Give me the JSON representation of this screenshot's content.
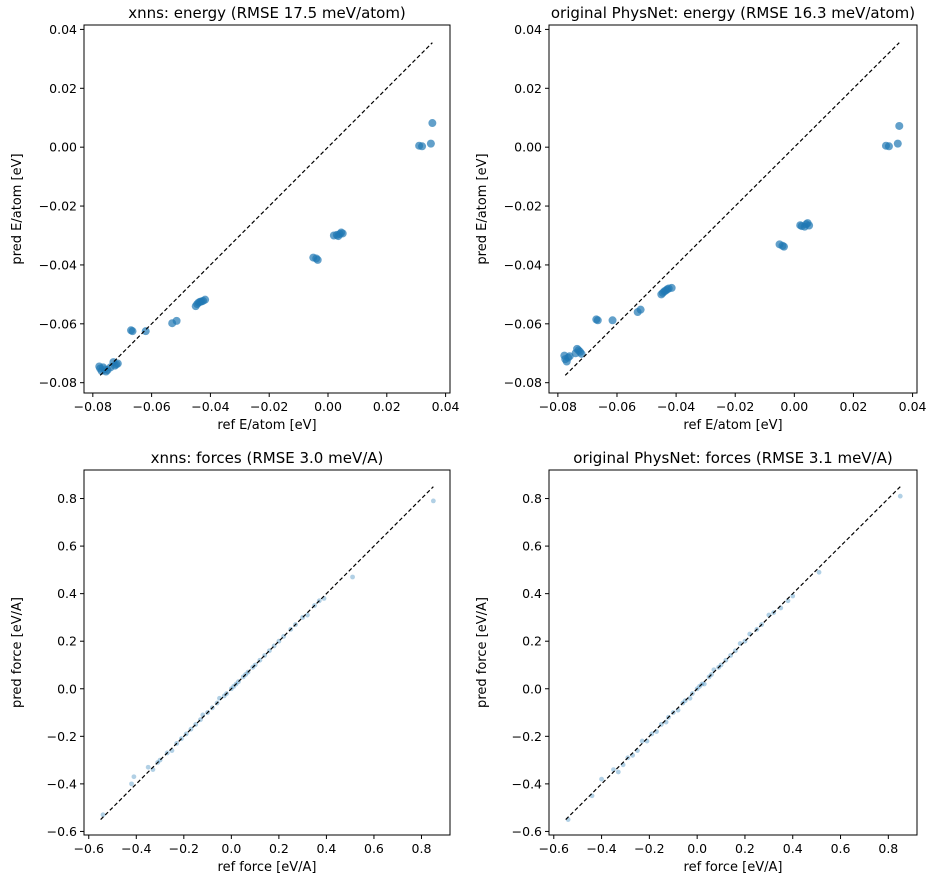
{
  "chart_data": [
    {
      "type": "scatter",
      "title": "xnns: energy (RMSE 17.5 meV/atom)",
      "xlabel": "ref E/atom [eV]",
      "ylabel": "pred E/atom [eV]",
      "xlim": [
        -0.083,
        0.0415
      ],
      "ylim": [
        -0.0835,
        0.0415
      ],
      "xticks": [
        -0.08,
        -0.06,
        -0.04,
        -0.02,
        0.0,
        0.02,
        0.04
      ],
      "xtick_labels": [
        "−0.08",
        "−0.06",
        "−0.04",
        "−0.02",
        "0.00",
        "0.02",
        "0.04"
      ],
      "yticks": [
        -0.08,
        -0.06,
        -0.04,
        -0.02,
        0.0,
        0.02,
        0.04
      ],
      "ytick_labels": [
        "−0.08",
        "−0.06",
        "−0.04",
        "−0.02",
        "0.00",
        "0.02",
        "0.04"
      ],
      "reference_line": {
        "x": [
          -0.0775,
          0.0355
        ],
        "y": [
          -0.0775,
          0.0355
        ],
        "style": "dashed",
        "color": "#000000"
      },
      "marker_color": "#1f77b4",
      "marker_alpha": 0.7,
      "grid": false,
      "points": [
        [
          -0.0778,
          -0.0745
        ],
        [
          -0.0775,
          -0.0752
        ],
        [
          -0.077,
          -0.076
        ],
        [
          -0.0765,
          -0.0748
        ],
        [
          -0.076,
          -0.0755
        ],
        [
          -0.0755,
          -0.0762
        ],
        [
          -0.075,
          -0.0757
        ],
        [
          -0.074,
          -0.0748
        ],
        [
          -0.073,
          -0.073
        ],
        [
          -0.0725,
          -0.0742
        ],
        [
          -0.072,
          -0.0738
        ],
        [
          -0.0715,
          -0.0735
        ],
        [
          -0.067,
          -0.0622
        ],
        [
          -0.0665,
          -0.0625
        ],
        [
          -0.062,
          -0.0625
        ],
        [
          -0.053,
          -0.0598
        ],
        [
          -0.0515,
          -0.059
        ],
        [
          -0.045,
          -0.054
        ],
        [
          -0.0445,
          -0.0533
        ],
        [
          -0.044,
          -0.0528
        ],
        [
          -0.0435,
          -0.0525
        ],
        [
          -0.043,
          -0.0524
        ],
        [
          -0.0425,
          -0.0522
        ],
        [
          -0.0418,
          -0.0518
        ],
        [
          -0.005,
          -0.0375
        ],
        [
          -0.004,
          -0.0378
        ],
        [
          -0.0035,
          -0.0383
        ],
        [
          0.002,
          -0.03
        ],
        [
          0.003,
          -0.0298
        ],
        [
          0.0035,
          -0.0302
        ],
        [
          0.004,
          -0.0295
        ],
        [
          0.0045,
          -0.029
        ],
        [
          0.005,
          -0.0293
        ],
        [
          0.031,
          0.0005
        ],
        [
          0.032,
          0.0003
        ],
        [
          0.035,
          0.0012
        ],
        [
          0.0355,
          0.0082
        ]
      ]
    },
    {
      "type": "scatter",
      "title": "original PhysNet: energy (RMSE 16.3 meV/atom)",
      "xlabel": "ref E/atom [eV]",
      "ylabel": "pred E/atom [eV]",
      "xlim": [
        -0.083,
        0.0415
      ],
      "ylim": [
        -0.0835,
        0.0415
      ],
      "xticks": [
        -0.08,
        -0.06,
        -0.04,
        -0.02,
        0.0,
        0.02,
        0.04
      ],
      "xtick_labels": [
        "−0.08",
        "−0.06",
        "−0.04",
        "−0.02",
        "0.00",
        "0.02",
        "0.04"
      ],
      "yticks": [
        -0.08,
        -0.06,
        -0.04,
        -0.02,
        0.0,
        0.02,
        0.04
      ],
      "ytick_labels": [
        "−0.08",
        "−0.06",
        "−0.04",
        "−0.02",
        "0.00",
        "0.02",
        "0.04"
      ],
      "reference_line": {
        "x": [
          -0.0775,
          0.0355
        ],
        "y": [
          -0.0775,
          0.0355
        ],
        "style": "dashed",
        "color": "#000000"
      },
      "marker_color": "#1f77b4",
      "marker_alpha": 0.7,
      "grid": false,
      "points": [
        [
          -0.0778,
          -0.0708
        ],
        [
          -0.0775,
          -0.072
        ],
        [
          -0.077,
          -0.0728
        ],
        [
          -0.0765,
          -0.0715
        ],
        [
          -0.076,
          -0.071
        ],
        [
          -0.074,
          -0.07
        ],
        [
          -0.0735,
          -0.0685
        ],
        [
          -0.073,
          -0.069
        ],
        [
          -0.0725,
          -0.0695
        ],
        [
          -0.072,
          -0.0702
        ],
        [
          -0.067,
          -0.0585
        ],
        [
          -0.0665,
          -0.0588
        ],
        [
          -0.0615,
          -0.0588
        ],
        [
          -0.053,
          -0.056
        ],
        [
          -0.052,
          -0.0552
        ],
        [
          -0.045,
          -0.05
        ],
        [
          -0.0445,
          -0.0495
        ],
        [
          -0.044,
          -0.049
        ],
        [
          -0.0435,
          -0.0487
        ],
        [
          -0.043,
          -0.0483
        ],
        [
          -0.0425,
          -0.048
        ],
        [
          -0.0415,
          -0.0478
        ],
        [
          -0.005,
          -0.033
        ],
        [
          -0.004,
          -0.0335
        ],
        [
          -0.0035,
          -0.0338
        ],
        [
          0.002,
          -0.0265
        ],
        [
          0.0025,
          -0.0268
        ],
        [
          0.0035,
          -0.027
        ],
        [
          0.004,
          -0.0262
        ],
        [
          0.0045,
          -0.0258
        ],
        [
          0.005,
          -0.0266
        ],
        [
          0.031,
          0.0005
        ],
        [
          0.032,
          0.0003
        ],
        [
          0.035,
          0.0012
        ],
        [
          0.0355,
          0.0072
        ]
      ]
    },
    {
      "type": "scatter",
      "title": "xnns: forces (RMSE 3.0 meV/A)",
      "xlabel": "ref force [eV/A]",
      "ylabel": "pred force [eV/A]",
      "xlim": [
        -0.62,
        0.92
      ],
      "ylim": [
        -0.615,
        0.92
      ],
      "xticks": [
        -0.6,
        -0.4,
        -0.2,
        0.0,
        0.2,
        0.4,
        0.6,
        0.8
      ],
      "xtick_labels": [
        "−0.6",
        "−0.4",
        "−0.2",
        "0.0",
        "0.2",
        "0.4",
        "0.6",
        "0.8"
      ],
      "yticks": [
        -0.6,
        -0.4,
        -0.2,
        0.0,
        0.2,
        0.4,
        0.6,
        0.8
      ],
      "ytick_labels": [
        "−0.6",
        "−0.4",
        "−0.2",
        "0.0",
        "0.2",
        "0.4",
        "0.6",
        "0.8"
      ],
      "reference_line": {
        "x": [
          -0.55,
          0.85
        ],
        "y": [
          -0.55,
          0.85
        ],
        "style": "dashed",
        "color": "#000000"
      },
      "marker_color": "#1f77b4",
      "marker_alpha": 0.35,
      "grid": false,
      "points": [
        [
          -0.54,
          -0.53
        ],
        [
          -0.41,
          -0.37
        ],
        [
          -0.42,
          -0.4
        ],
        [
          -0.35,
          -0.33
        ],
        [
          -0.33,
          -0.34
        ],
        [
          -0.31,
          -0.31
        ],
        [
          -0.3,
          -0.3
        ],
        [
          -0.27,
          -0.27
        ],
        [
          -0.25,
          -0.26
        ],
        [
          -0.23,
          -0.23
        ],
        [
          -0.21,
          -0.21
        ],
        [
          -0.19,
          -0.19
        ],
        [
          -0.17,
          -0.17
        ],
        [
          -0.15,
          -0.15
        ],
        [
          -0.13,
          -0.13
        ],
        [
          -0.12,
          -0.11
        ],
        [
          -0.1,
          -0.1
        ],
        [
          -0.08,
          -0.08
        ],
        [
          -0.06,
          -0.06
        ],
        [
          -0.05,
          -0.04
        ],
        [
          -0.03,
          -0.03
        ],
        [
          -0.02,
          -0.02
        ],
        [
          0.0,
          0.0
        ],
        [
          0.01,
          0.01
        ],
        [
          0.02,
          0.02
        ],
        [
          0.03,
          0.03
        ],
        [
          0.05,
          0.05
        ],
        [
          0.06,
          0.06
        ],
        [
          0.07,
          0.07
        ],
        [
          0.09,
          0.09
        ],
        [
          0.1,
          0.1
        ],
        [
          0.12,
          0.12
        ],
        [
          0.14,
          0.14
        ],
        [
          0.16,
          0.16
        ],
        [
          0.18,
          0.18
        ],
        [
          0.2,
          0.2
        ],
        [
          0.22,
          0.22
        ],
        [
          0.25,
          0.25
        ],
        [
          0.27,
          0.27
        ],
        [
          0.3,
          0.3
        ],
        [
          0.32,
          0.31
        ],
        [
          0.35,
          0.35
        ],
        [
          0.37,
          0.37
        ],
        [
          0.39,
          0.38
        ],
        [
          0.51,
          0.47
        ],
        [
          0.85,
          0.79
        ]
      ]
    },
    {
      "type": "scatter",
      "title": "original PhysNet: forces (RMSE 3.1 meV/A)",
      "xlabel": "ref force [eV/A]",
      "ylabel": "pred force [eV/A]",
      "xlim": [
        -0.62,
        0.92
      ],
      "ylim": [
        -0.615,
        0.92
      ],
      "xticks": [
        -0.6,
        -0.4,
        -0.2,
        0.0,
        0.2,
        0.4,
        0.6,
        0.8
      ],
      "xtick_labels": [
        "−0.6",
        "−0.4",
        "−0.2",
        "0.0",
        "0.2",
        "0.4",
        "0.6",
        "0.8"
      ],
      "yticks": [
        -0.6,
        -0.4,
        -0.2,
        0.0,
        0.2,
        0.4,
        0.6,
        0.8
      ],
      "ytick_labels": [
        "−0.6",
        "−0.4",
        "−0.2",
        "0.0",
        "0.2",
        "0.4",
        "0.6",
        "0.8"
      ],
      "reference_line": {
        "x": [
          -0.55,
          0.85
        ],
        "y": [
          -0.55,
          0.85
        ],
        "style": "dashed",
        "color": "#000000"
      },
      "marker_color": "#1f77b4",
      "marker_alpha": 0.35,
      "grid": false,
      "points": [
        [
          -0.54,
          -0.55
        ],
        [
          -0.44,
          -0.45
        ],
        [
          -0.4,
          -0.38
        ],
        [
          -0.35,
          -0.34
        ],
        [
          -0.33,
          -0.35
        ],
        [
          -0.31,
          -0.32
        ],
        [
          -0.29,
          -0.29
        ],
        [
          -0.27,
          -0.28
        ],
        [
          -0.25,
          -0.26
        ],
        [
          -0.23,
          -0.22
        ],
        [
          -0.21,
          -0.22
        ],
        [
          -0.19,
          -0.19
        ],
        [
          -0.17,
          -0.18
        ],
        [
          -0.15,
          -0.15
        ],
        [
          -0.13,
          -0.14
        ],
        [
          -0.12,
          -0.12
        ],
        [
          -0.1,
          -0.1
        ],
        [
          -0.08,
          -0.09
        ],
        [
          -0.06,
          -0.06
        ],
        [
          -0.05,
          -0.05
        ],
        [
          -0.03,
          -0.04
        ],
        [
          -0.02,
          -0.02
        ],
        [
          0.0,
          0.0
        ],
        [
          0.01,
          0.01
        ],
        [
          0.02,
          0.02
        ],
        [
          0.03,
          0.02
        ],
        [
          0.05,
          0.05
        ],
        [
          0.06,
          0.06
        ],
        [
          0.07,
          0.08
        ],
        [
          0.09,
          0.09
        ],
        [
          0.1,
          0.1
        ],
        [
          0.12,
          0.12
        ],
        [
          0.14,
          0.14
        ],
        [
          0.16,
          0.16
        ],
        [
          0.18,
          0.19
        ],
        [
          0.2,
          0.2
        ],
        [
          0.22,
          0.23
        ],
        [
          0.25,
          0.25
        ],
        [
          0.27,
          0.27
        ],
        [
          0.3,
          0.31
        ],
        [
          0.32,
          0.32
        ],
        [
          0.35,
          0.34
        ],
        [
          0.38,
          0.37
        ],
        [
          0.4,
          0.39
        ],
        [
          0.51,
          0.49
        ],
        [
          0.85,
          0.81
        ]
      ]
    }
  ]
}
